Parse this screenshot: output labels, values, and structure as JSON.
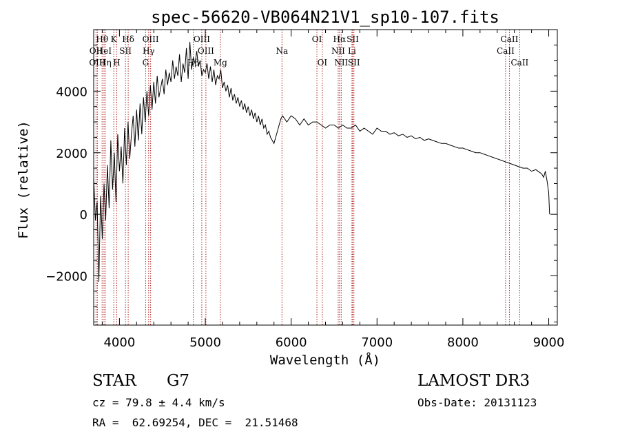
{
  "chart_data": {
    "type": "line",
    "title": "spec-56620-VB064N21V1_sp10-107.fits",
    "xlabel": "Wavelength (Å)",
    "ylabel": "Flux (relative)",
    "xlim": [
      3700,
      9100
    ],
    "ylim": [
      -3600,
      6000
    ],
    "xticks": [
      4000,
      5000,
      6000,
      7000,
      8000,
      9000
    ],
    "yticks": [
      -2000,
      0,
      2000,
      4000
    ],
    "xtick_labels": [
      "4000",
      "5000",
      "6000",
      "7000",
      "8000",
      "9000"
    ],
    "ytick_labels": [
      "−2000",
      "0",
      "2000",
      "4000"
    ],
    "series": [
      {
        "name": "spectrum",
        "x": [
          3700,
          3720,
          3740,
          3760,
          3780,
          3800,
          3820,
          3840,
          3860,
          3880,
          3900,
          3920,
          3940,
          3960,
          3980,
          4000,
          4020,
          4040,
          4060,
          4080,
          4100,
          4120,
          4140,
          4160,
          4180,
          4200,
          4220,
          4240,
          4260,
          4280,
          4300,
          4320,
          4340,
          4360,
          4380,
          4400,
          4420,
          4440,
          4460,
          4480,
          4500,
          4520,
          4540,
          4560,
          4580,
          4600,
          4620,
          4640,
          4660,
          4680,
          4700,
          4720,
          4740,
          4760,
          4780,
          4800,
          4820,
          4840,
          4860,
          4880,
          4900,
          4920,
          4940,
          4960,
          4980,
          5000,
          5020,
          5040,
          5060,
          5080,
          5100,
          5120,
          5140,
          5160,
          5180,
          5200,
          5220,
          5240,
          5260,
          5280,
          5300,
          5320,
          5340,
          5360,
          5380,
          5400,
          5420,
          5440,
          5460,
          5480,
          5500,
          5520,
          5540,
          5560,
          5580,
          5600,
          5620,
          5640,
          5660,
          5680,
          5700,
          5720,
          5740,
          5760,
          5780,
          5800,
          5820,
          5840,
          5860,
          5880,
          5900,
          5950,
          6000,
          6050,
          6100,
          6150,
          6200,
          6250,
          6300,
          6350,
          6400,
          6450,
          6500,
          6550,
          6600,
          6650,
          6700,
          6750,
          6800,
          6850,
          6900,
          6950,
          7000,
          7050,
          7100,
          7150,
          7200,
          7250,
          7300,
          7350,
          7400,
          7450,
          7500,
          7550,
          7600,
          7650,
          7700,
          7750,
          7800,
          7850,
          7900,
          7950,
          8000,
          8050,
          8100,
          8150,
          8200,
          8250,
          8300,
          8350,
          8400,
          8450,
          8500,
          8550,
          8600,
          8650,
          8700,
          8750,
          8800,
          8850,
          8900,
          8920,
          8940,
          8960,
          8980,
          9000,
          9010
        ],
        "y": [
          1200,
          -200,
          400,
          -2200,
          600,
          -800,
          1000,
          -200,
          1600,
          200,
          2400,
          800,
          2000,
          400,
          2600,
          1400,
          2200,
          1000,
          2800,
          1600,
          3000,
          1800,
          2600,
          3200,
          2200,
          3400,
          2400,
          3600,
          2600,
          3800,
          3000,
          4000,
          3200,
          4200,
          3400,
          4300,
          3600,
          4500,
          3800,
          4100,
          4400,
          3900,
          4700,
          4200,
          4600,
          4300,
          5000,
          4400,
          4800,
          4500,
          5200,
          4300,
          4900,
          4600,
          5400,
          4400,
          5600,
          4700,
          5100,
          4900,
          5300,
          4800,
          5000,
          4500,
          4700,
          4600,
          4900,
          4400,
          4800,
          4300,
          4700,
          4200,
          4500,
          4400,
          4700,
          4100,
          4300,
          4000,
          4200,
          3800,
          4100,
          3700,
          3900,
          3600,
          3800,
          3500,
          3700,
          3400,
          3600,
          3300,
          3500,
          3200,
          3400,
          3100,
          3300,
          3000,
          3200,
          2900,
          3100,
          2800,
          2900,
          2600,
          2700,
          2500,
          2400,
          2300,
          2500,
          2700,
          2900,
          3100,
          3200,
          3000,
          3200,
          3100,
          2900,
          3100,
          2900,
          3000,
          3000,
          2900,
          2800,
          2900,
          2900,
          2800,
          2900,
          2800,
          2800,
          2900,
          2700,
          2800,
          2700,
          2600,
          2800,
          2700,
          2700,
          2600,
          2650,
          2550,
          2600,
          2500,
          2550,
          2450,
          2500,
          2400,
          2450,
          2400,
          2350,
          2300,
          2300,
          2250,
          2200,
          2150,
          2150,
          2100,
          2050,
          2000,
          2000,
          1950,
          1900,
          1850,
          1800,
          1750,
          1700,
          1650,
          1600,
          1550,
          1500,
          1500,
          1400,
          1450,
          1350,
          1300,
          1200,
          1400,
          1100,
          700,
          0
        ]
      }
    ],
    "line_markers": [
      {
        "label": "Hθ",
        "x": 3798,
        "row": 0
      },
      {
        "label": "OII",
        "x": 3727,
        "row": 1
      },
      {
        "label": "OIII",
        "x": 3743,
        "row": 2
      },
      {
        "label": "K",
        "x": 3934,
        "row": 0
      },
      {
        "label": "HeI",
        "x": 3820,
        "row": 1
      },
      {
        "label": "Hη",
        "x": 3835,
        "row": 2
      },
      {
        "label": "SII",
        "x": 4070,
        "row": 1
      },
      {
        "label": "H",
        "x": 3969,
        "row": 2
      },
      {
        "label": "Hδ",
        "x": 4102,
        "row": 0
      },
      {
        "label": "OIII",
        "x": 4363,
        "row": 0
      },
      {
        "label": "Hγ",
        "x": 4340,
        "row": 1
      },
      {
        "label": "G",
        "x": 4305,
        "row": 2
      },
      {
        "label": "OIII",
        "x": 4959,
        "row": 0
      },
      {
        "label": "OIII",
        "x": 5007,
        "row": 1
      },
      {
        "label": "Hβ",
        "x": 4861,
        "row": 2
      },
      {
        "label": "Mg",
        "x": 5175,
        "row": 2
      },
      {
        "label": "Na",
        "x": 5893,
        "row": 1
      },
      {
        "label": "OI",
        "x": 6300,
        "row": 0
      },
      {
        "label": "OI",
        "x": 6363,
        "row": 2
      },
      {
        "label": "Hα",
        "x": 6563,
        "row": 0
      },
      {
        "label": "NII",
        "x": 6548,
        "row": 1
      },
      {
        "label": "NII",
        "x": 6583,
        "row": 2
      },
      {
        "label": "SII",
        "x": 6717,
        "row": 0
      },
      {
        "label": "Li",
        "x": 6708,
        "row": 1
      },
      {
        "label": "SII",
        "x": 6731,
        "row": 2
      },
      {
        "label": "CaII",
        "x": 8542,
        "row": 0
      },
      {
        "label": "CaII",
        "x": 8498,
        "row": 1
      },
      {
        "label": "CaII",
        "x": 8662,
        "row": 2
      }
    ],
    "marker_color": "#b22222"
  },
  "info": {
    "object_class": "STAR",
    "subclass": "G7",
    "survey": "LAMOST DR3",
    "cz": "cz = 79.8 ± 4.4 km/s",
    "obs_date": "Obs-Date: 20131123",
    "coords": "RA =  62.69254, DEC =  21.51468"
  }
}
